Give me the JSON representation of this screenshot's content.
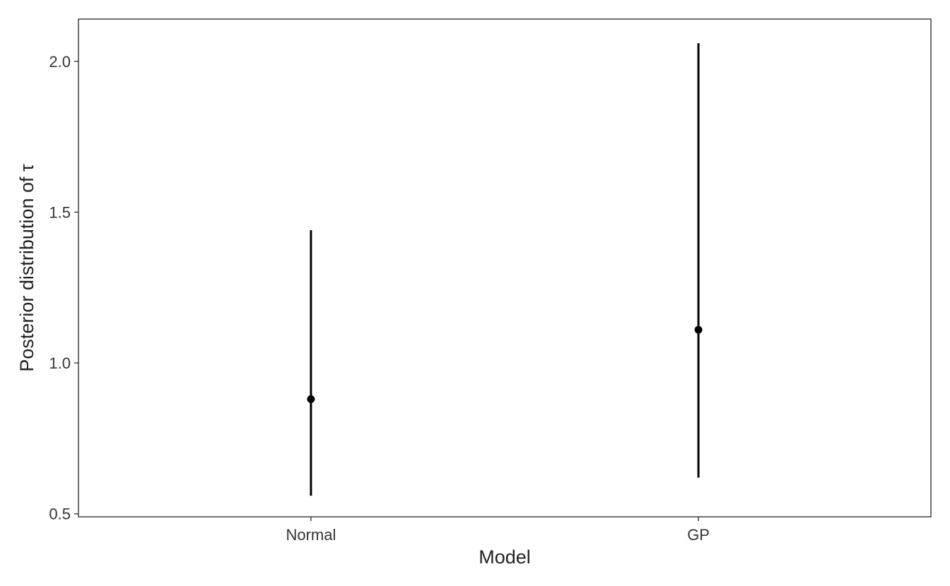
{
  "chart_data": {
    "type": "errorbar",
    "xlabel": "Model",
    "ylabel": "Posterior distribution of τ",
    "categories": [
      "Normal",
      "GP"
    ],
    "points": [
      {
        "category": "Normal",
        "estimate": 0.88,
        "lower": 0.56,
        "upper": 1.44
      },
      {
        "category": "GP",
        "estimate": 1.11,
        "lower": 0.62,
        "upper": 2.06
      }
    ],
    "ylim": [
      0.49,
      2.14
    ],
    "y_ticks": [
      0.5,
      1.0,
      1.5,
      2.0
    ],
    "y_tick_labels": [
      "0.5",
      "1.0",
      "1.5",
      "2.0"
    ],
    "grid": false,
    "legend": "none",
    "colors": {
      "marks": "#000000",
      "panel_border": "#333333",
      "background": "#ffffff"
    }
  }
}
